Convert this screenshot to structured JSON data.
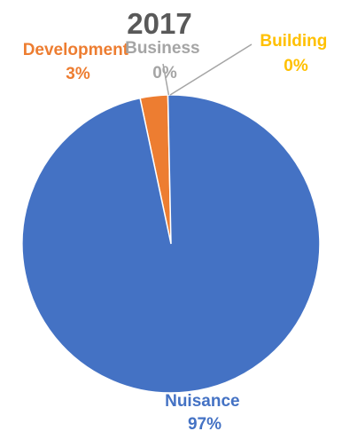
{
  "chart_data": {
    "type": "pie",
    "title": "2017",
    "categories": [
      "Nuisance",
      "Development",
      "Business",
      "Building"
    ],
    "values": [
      97,
      3,
      0,
      0
    ],
    "value_labels": [
      "97%",
      "3%",
      "0%",
      "0%"
    ],
    "colors": [
      "#4472C4",
      "#ED7D31",
      "#A5A5A5",
      "#FFC000"
    ],
    "label_colors": [
      "#4472C4",
      "#ED7D31",
      "#A5A5A5",
      "#FFC000"
    ],
    "start_angle_deg": 0,
    "direction": "clockwise",
    "legend": "none"
  }
}
